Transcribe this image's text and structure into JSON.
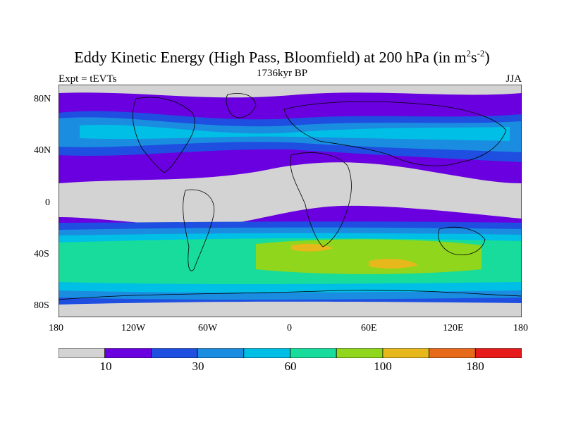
{
  "header": {
    "title_main": "Eddy Kinetic Energy (High Pass, Bloomfield) at 200 hPa (in m",
    "title_sup1": "2",
    "title_mid": "s",
    "title_sup2": "-2",
    "title_end": ")",
    "left_label": "Expt = tEVTs",
    "center_label": "1736kyr BP",
    "right_label": "JJA"
  },
  "axes": {
    "y_ticks": [
      "80N",
      "40N",
      "0",
      "40S",
      "80S"
    ],
    "x_ticks": [
      "180",
      "120W",
      "60W",
      "0",
      "60E",
      "120E",
      "180"
    ]
  },
  "colorbar": {
    "colors": [
      "#d3d3d3",
      "#6a00e0",
      "#1f4fe0",
      "#1a8de0",
      "#00bfe6",
      "#17dc9c",
      "#8fd61c",
      "#e6b81b",
      "#e66a1a",
      "#e61a1a"
    ],
    "tick_labels": [
      "10",
      "30",
      "60",
      "100",
      "180"
    ]
  },
  "map_fields": {
    "land_outline_color": "#000000"
  }
}
